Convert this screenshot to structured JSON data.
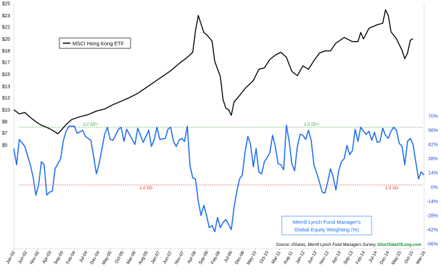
{
  "chart_data": {
    "type": "line",
    "title": "",
    "xlabel": "",
    "ylabel_left": "",
    "ylabel_right": "",
    "x_ticks": [
      "Jan-02",
      "Jun-02",
      "Nov-02",
      "Apr-03",
      "Sep-03",
      "Feb-04",
      "Jul-04",
      "Dec-04",
      "May-05",
      "Oct-05",
      "Mar-06",
      "Aug-06",
      "Jan-07",
      "Jun-07",
      "Nov-07",
      "Apr-08",
      "Sep-08",
      "Feb-09",
      "Jul-09",
      "Dec-09",
      "May-10",
      "Oct-10",
      "Mar-11",
      "Aug-11",
      "Jan-12",
      "Jun-12",
      "Nov-12",
      "Apr-13",
      "Sep-13",
      "Feb-14",
      "Jul-14",
      "Dec-14",
      "May-15",
      "Oct-15",
      "Mar-16"
    ],
    "y_left_ticks": [
      "$25",
      "$23",
      "$22",
      "$20",
      "$18",
      "$17",
      "$15",
      "$13",
      "$12",
      "$10",
      "$8",
      "$7",
      "$5"
    ],
    "y_left_values": [
      25,
      23.3,
      21.7,
      20,
      18.3,
      16.7,
      15,
      13.3,
      11.7,
      10,
      8.3,
      6.7,
      5
    ],
    "y_left_range": [
      5,
      25
    ],
    "y_right_ticks": [
      "70%",
      "56%",
      "42%",
      "28%",
      "14%",
      "0%",
      "-14%",
      "-28%",
      "-42%",
      "-56%"
    ],
    "y_right_values": [
      70,
      56,
      42,
      28,
      14,
      0,
      -14,
      -28,
      -42,
      -56
    ],
    "y_right_range": [
      -56,
      70
    ],
    "grid": false,
    "legend": {
      "placement": "top-left",
      "entries": [
        "MSCI Hong Kong ETF"
      ]
    },
    "bands": [
      {
        "label": "1.0 SD+",
        "value": 59,
        "color": "#3aa53a"
      },
      {
        "label": "1.0 SD-",
        "value": 2,
        "color": "#e03030"
      }
    ],
    "annotation": {
      "line1": "Merrill Lynch Fund Manager's",
      "line2": "Global Equity Weighting (%)"
    },
    "source": {
      "text": "Source: iShares, Merrill Lynch Fund Managers Survey, ",
      "brand": "ShortSideOfLong.com"
    },
    "series": [
      {
        "name": "MSCI Hong Kong ETF",
        "axis": "left",
        "color": "#000000",
        "points": [
          [
            0,
            10.0
          ],
          [
            2,
            9.4
          ],
          [
            4,
            9.6
          ],
          [
            6,
            8.9
          ],
          [
            8,
            8.3
          ],
          [
            10,
            7.8
          ],
          [
            12,
            7.5
          ],
          [
            14,
            7.1
          ],
          [
            16,
            6.6
          ],
          [
            17,
            7.0
          ],
          [
            19,
            7.9
          ],
          [
            21,
            8.6
          ],
          [
            24,
            9.0
          ],
          [
            27,
            9.3
          ],
          [
            30,
            9.8
          ],
          [
            33,
            10.1
          ],
          [
            36,
            10.7
          ],
          [
            39,
            11.2
          ],
          [
            42,
            11.7
          ],
          [
            45,
            12.3
          ],
          [
            48,
            13.1
          ],
          [
            51,
            13.9
          ],
          [
            54,
            14.7
          ],
          [
            57,
            15.5
          ],
          [
            60,
            16.5
          ],
          [
            63,
            17.4
          ],
          [
            65,
            18.1
          ],
          [
            66,
            21.2
          ],
          [
            67,
            23.3
          ],
          [
            68,
            22.1
          ],
          [
            69,
            20.9
          ],
          [
            70,
            20.6
          ],
          [
            72,
            19.7
          ],
          [
            73,
            16.8
          ],
          [
            75,
            14.7
          ],
          [
            76,
            11.4
          ],
          [
            77,
            10.2
          ],
          [
            78,
            10.0
          ],
          [
            79,
            9.2
          ],
          [
            80,
            11.1
          ],
          [
            82,
            12.0
          ],
          [
            84,
            13.0
          ],
          [
            87,
            14.1
          ],
          [
            89,
            15.7
          ],
          [
            91,
            15.9
          ],
          [
            93,
            17.1
          ],
          [
            95,
            17.7
          ],
          [
            97,
            18.1
          ],
          [
            99,
            17.4
          ],
          [
            101,
            15.4
          ],
          [
            103,
            14.8
          ],
          [
            105,
            16.2
          ],
          [
            107,
            15.7
          ],
          [
            109,
            16.9
          ],
          [
            111,
            18.0
          ],
          [
            113,
            18.3
          ],
          [
            115,
            18.3
          ],
          [
            117,
            19.4
          ],
          [
            120,
            20.2
          ],
          [
            123,
            19.6
          ],
          [
            125,
            19.6
          ],
          [
            126,
            20.9
          ],
          [
            127,
            20.0
          ],
          [
            129,
            21.5
          ],
          [
            132,
            22.0
          ],
          [
            134,
            22.2
          ],
          [
            135,
            24.1
          ],
          [
            136,
            23.3
          ],
          [
            137,
            21.0
          ],
          [
            139,
            20.0
          ],
          [
            141,
            18.4
          ],
          [
            142,
            17.2
          ],
          [
            143,
            18.0
          ],
          [
            144,
            19.8
          ],
          [
            145,
            20.0
          ]
        ]
      },
      {
        "name": "Merrill Lynch Fund Manager's Global Equity Weighting (%)",
        "axis": "right",
        "color": "#1f6ff0",
        "points": [
          [
            0,
            38
          ],
          [
            1,
            22
          ],
          [
            2,
            47
          ],
          [
            4,
            40
          ],
          [
            6,
            22
          ],
          [
            7,
            10
          ],
          [
            8,
            -8
          ],
          [
            9,
            2
          ],
          [
            10,
            25
          ],
          [
            11,
            22
          ],
          [
            12,
            -8
          ],
          [
            13,
            -5
          ],
          [
            14,
            -4
          ],
          [
            15,
            18
          ],
          [
            17,
            28
          ],
          [
            18,
            46
          ],
          [
            19,
            55
          ],
          [
            20,
            60
          ],
          [
            22,
            60
          ],
          [
            23,
            53
          ],
          [
            25,
            56
          ],
          [
            26,
            50
          ],
          [
            28,
            46
          ],
          [
            29,
            30
          ],
          [
            30,
            13
          ],
          [
            31,
            23
          ],
          [
            33,
            52
          ],
          [
            34,
            59
          ],
          [
            35,
            47
          ],
          [
            36,
            46
          ],
          [
            38,
            57
          ],
          [
            39,
            59
          ],
          [
            40,
            45
          ],
          [
            41,
            57
          ],
          [
            42,
            52
          ],
          [
            44,
            42
          ],
          [
            45,
            58
          ],
          [
            47,
            44
          ],
          [
            49,
            56
          ],
          [
            50,
            40
          ],
          [
            51,
            47
          ],
          [
            52,
            59
          ],
          [
            53,
            47
          ],
          [
            55,
            48
          ],
          [
            56,
            57
          ],
          [
            57,
            59
          ],
          [
            58,
            45
          ],
          [
            59,
            40
          ],
          [
            60,
            46
          ],
          [
            61,
            48
          ],
          [
            62,
            45
          ],
          [
            63,
            60
          ],
          [
            64,
            21
          ],
          [
            65,
            9
          ],
          [
            66,
            8
          ],
          [
            67,
            -14
          ],
          [
            68,
            -28
          ],
          [
            69,
            -18
          ],
          [
            70,
            -28
          ],
          [
            71,
            -40
          ],
          [
            72,
            -38
          ],
          [
            73,
            -44
          ],
          [
            74,
            -30
          ],
          [
            75,
            -40
          ],
          [
            76,
            -35
          ],
          [
            77,
            -32
          ],
          [
            78,
            -37
          ],
          [
            79,
            -42
          ],
          [
            80,
            -20
          ],
          [
            81,
            -4
          ],
          [
            82,
            8
          ],
          [
            83,
            12
          ],
          [
            84,
            35
          ],
          [
            85,
            50
          ],
          [
            86,
            42
          ],
          [
            87,
            20
          ],
          [
            88,
            38
          ],
          [
            89,
            15
          ],
          [
            90,
            13
          ],
          [
            91,
            25
          ],
          [
            92,
            29
          ],
          [
            93,
            34
          ],
          [
            94,
            51
          ],
          [
            95,
            40
          ],
          [
            96,
            23
          ],
          [
            97,
            22
          ],
          [
            98,
            17
          ],
          [
            99,
            61
          ],
          [
            100,
            45
          ],
          [
            101,
            23
          ],
          [
            102,
            16
          ],
          [
            103,
            40
          ],
          [
            104,
            52
          ],
          [
            105,
            51
          ],
          [
            106,
            47
          ],
          [
            107,
            56
          ],
          [
            108,
            46
          ],
          [
            109,
            22
          ],
          [
            110,
            14
          ],
          [
            111,
            5
          ],
          [
            112,
            -5
          ],
          [
            113,
            -6
          ],
          [
            114,
            5
          ],
          [
            115,
            18
          ],
          [
            116,
            10
          ],
          [
            117,
            -3
          ],
          [
            118,
            16
          ],
          [
            119,
            25
          ],
          [
            120,
            28
          ],
          [
            121,
            41
          ],
          [
            122,
            32
          ],
          [
            123,
            36
          ],
          [
            124,
            57
          ],
          [
            125,
            45
          ],
          [
            126,
            59
          ],
          [
            127,
            55
          ],
          [
            128,
            52
          ],
          [
            129,
            55
          ],
          [
            130,
            46
          ],
          [
            131,
            54
          ],
          [
            132,
            44
          ],
          [
            133,
            45
          ],
          [
            134,
            58
          ],
          [
            135,
            51
          ],
          [
            136,
            48
          ],
          [
            137,
            55
          ],
          [
            138,
            59
          ],
          [
            139,
            56
          ],
          [
            140,
            43
          ],
          [
            141,
            40
          ],
          [
            142,
            22
          ],
          [
            143,
            45
          ],
          [
            144,
            48
          ],
          [
            145,
            42
          ],
          [
            146,
            25
          ],
          [
            147,
            8
          ],
          [
            148,
            15
          ],
          [
            149,
            12
          ]
        ]
      }
    ]
  }
}
